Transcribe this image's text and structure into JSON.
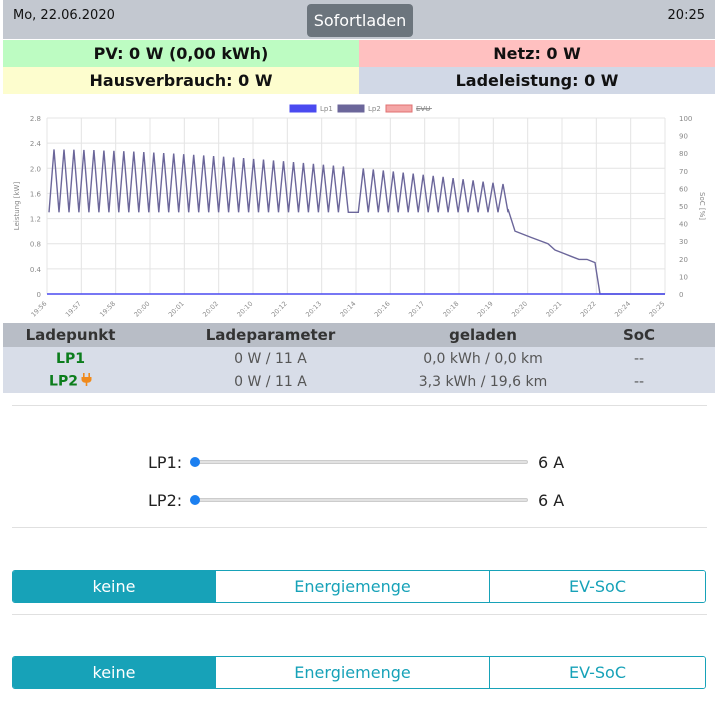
{
  "header": {
    "date": "Mo, 22.06.2020",
    "time": "20:25",
    "mode_button": "Sofortladen"
  },
  "stats": {
    "pv": "PV: 0 W (0,00 kWh)",
    "netz": "Netz: 0 W",
    "hausverbrauch": "Hausverbrauch: 0 W",
    "ladeleistung": "Ladeleistung: 0 W"
  },
  "chart_data": {
    "type": "line",
    "legend": [
      "Lp1",
      "Lp2",
      "EVU"
    ],
    "legend_position": "top",
    "ylabel": "Leistung [kW]",
    "y2label": "SoC [%]",
    "ylim": [
      0,
      2.8
    ],
    "y_ticks": [
      "0",
      "0.4",
      "0.8",
      "1.2",
      "1.6",
      "2.0",
      "2.4",
      "2.8"
    ],
    "y2lim": [
      0,
      100
    ],
    "y2_ticks": [
      "0",
      "10",
      "20",
      "30",
      "40",
      "50",
      "60",
      "70",
      "80",
      "90",
      "100"
    ],
    "x_ticks": [
      "19:56",
      "19:57",
      "19:58",
      "20:00",
      "20:01",
      "20:02",
      "20:10",
      "20:12",
      "20:13",
      "20:14",
      "20:16",
      "20:17",
      "20:18",
      "20:19",
      "20:20",
      "20:21",
      "20:22",
      "20:24",
      "20:25"
    ],
    "grid": true,
    "series": [
      {
        "name": "Lp1",
        "color": "#4a4af0",
        "description": "flat at 0 kW",
        "values": [
          0
        ]
      },
      {
        "name": "Lp2",
        "color": "#6b669a",
        "oscillation_min": 1.3,
        "oscillation_max_start": 2.3,
        "oscillation_max_end": 1.75,
        "cycles": 46,
        "after_cycles": [
          1.35,
          1.0,
          0.9,
          0.8,
          0.7,
          0.65,
          0.6,
          0.55,
          0.55,
          0.5,
          0.0
        ]
      },
      {
        "name": "EVU",
        "color": "#f4a6a6",
        "description": "hidden (struck through in legend)",
        "values": []
      }
    ]
  },
  "lp_table": {
    "headers": [
      "Ladepunkt",
      "Ladeparameter",
      "geladen",
      "SoC"
    ],
    "rows": [
      {
        "name": "LP1",
        "param": "0 W / 11 A",
        "geladen": "0,0 kWh / 0,0 km",
        "soc": "--",
        "plugged": false
      },
      {
        "name": "LP2",
        "param": "0 W / 11 A",
        "geladen": "3,3 kWh / 19,6 km",
        "soc": "--",
        "plugged": true
      }
    ]
  },
  "sliders": [
    {
      "label": "LP1:",
      "value": "6 A",
      "fraction": 0
    },
    {
      "label": "LP2:",
      "value": "6 A",
      "fraction": 0
    }
  ],
  "modes": [
    {
      "options": [
        "keine",
        "Energiemenge",
        "EV-SoC"
      ],
      "selected": "keine"
    },
    {
      "options": [
        "keine",
        "Energiemenge",
        "EV-SoC"
      ],
      "selected": "keine"
    }
  ]
}
